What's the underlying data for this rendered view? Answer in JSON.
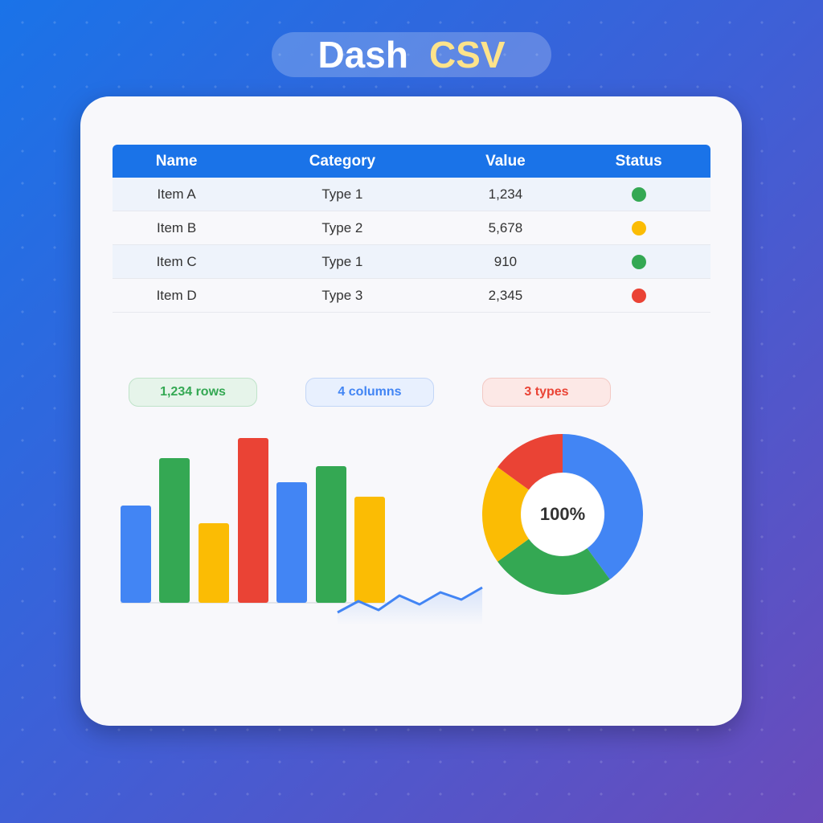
{
  "header": {
    "title_part1": "Dash",
    "title_part2": "CSV"
  },
  "table": {
    "columns": [
      "Name",
      "Category",
      "Value",
      "Status"
    ],
    "rows": [
      [
        "Item A",
        "Type 1",
        "1,234"
      ],
      [
        "Item B",
        "Type 2",
        "5,678"
      ],
      [
        "Item C",
        "Type 1",
        "910"
      ],
      [
        "Item D",
        "Type 3",
        "2,345"
      ]
    ],
    "status_colors": [
      "#34a853",
      "#fbbc04",
      "#34a853",
      "#ea4335"
    ]
  },
  "badges": [
    "1,234 rows",
    "4 columns",
    "3 types"
  ],
  "donut_label": "100%"
}
